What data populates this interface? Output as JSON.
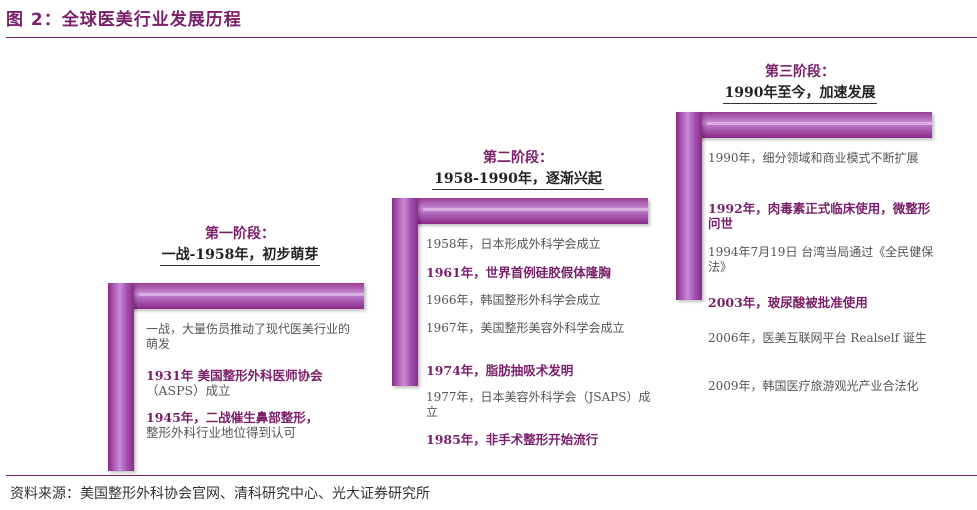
{
  "title": "图 2：全球医美行业发展历程",
  "source": "资料来源：美国整形外科协会官网、清科研究中心、光大证券研究所",
  "colors": {
    "accent": "#7a1f6a",
    "bar": "#a24fb0",
    "text": "#555555"
  },
  "stages": [
    {
      "name": "第一阶段：",
      "period": "一战-1958年，初步萌芽",
      "events": [
        {
          "text": "一战，大量伤员推动了现代医美行业的萌发",
          "highlight": false
        },
        {
          "text": "1931年 美国整形外科医师协会",
          "sub": "（ASPS）成立",
          "highlight": true
        },
        {
          "text": "1945年，二战催生鼻部整形，",
          "sub": "整形外科行业地位得到认可",
          "highlight": true
        }
      ]
    },
    {
      "name": "第二阶段：",
      "period": "1958-1990年，逐渐兴起",
      "events": [
        {
          "text": "1958年，日本形成外科学会成立",
          "highlight": false
        },
        {
          "text": "1961年，世界首例硅胶假体隆胸",
          "highlight": true
        },
        {
          "text": "1966年，韩国整形外科学会成立",
          "highlight": false
        },
        {
          "text": "1967年，美国整形美容外科学会成立",
          "highlight": false
        },
        {
          "text": "1974年，脂肪抽吸术发明",
          "highlight": true
        },
        {
          "text": "1977年，日本美容外科学会（JSAPS）成立",
          "highlight": false
        },
        {
          "text": "1985年，非手术整形开始流行",
          "highlight": true
        }
      ]
    },
    {
      "name": "第三阶段：",
      "period": "1990年至今，加速发展",
      "events": [
        {
          "text": "1990年，细分领域和商业模式不断扩展",
          "highlight": false
        },
        {
          "text": "1992年，肉毒素正式临床使用，微整形问世",
          "highlight": true
        },
        {
          "text": "1994年7月19日 台湾当局通过《全民健保法》",
          "highlight": false
        },
        {
          "text": "2003年，玻尿酸被批准使用",
          "highlight": true
        },
        {
          "text": "2006年，医美互联网平台 Realself 诞生",
          "highlight": false
        },
        {
          "text": "2009年，韩国医疗旅游观光产业合法化",
          "highlight": false
        }
      ]
    }
  ]
}
